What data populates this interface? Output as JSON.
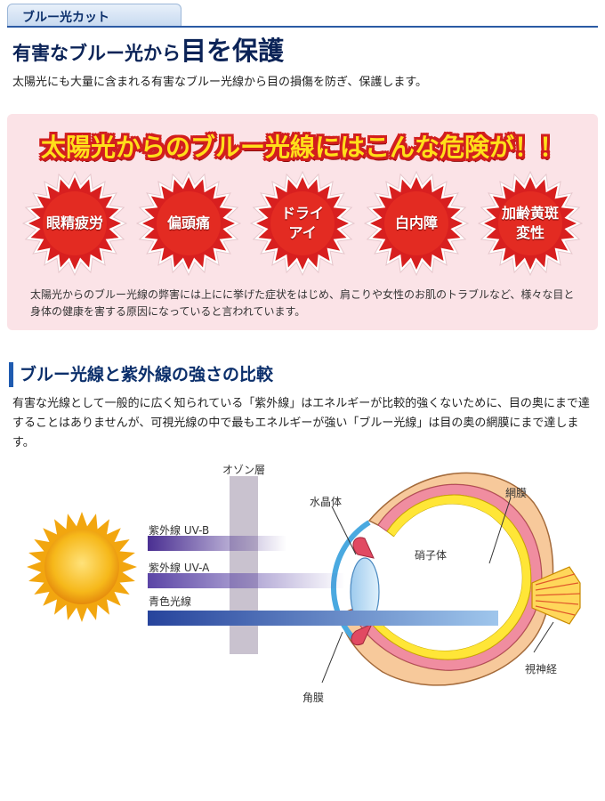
{
  "header": {
    "tab_label": "ブルー光カット",
    "title_prefix": "有害なブルー光から",
    "title_emphasis": "目を保護",
    "intro": "太陽光にも大量に含まれる有害なブルー光線から目の損傷を防ぎ、保護します。"
  },
  "danger": {
    "heading": "太陽光からのブルー光線にはこんな危険が！！",
    "symptoms": [
      "眼精疲労",
      "偏頭痛",
      "ドライ\nアイ",
      "白内障",
      "加齢黄斑\n変性"
    ],
    "note": "太陽光からのブルー光線の弊害には上にに挙げた症状をはじめ、肩こりや女性のお肌のトラブルなど、様々な目と身体の健康を害する原因になっていると言われています。"
  },
  "comparison": {
    "title": "ブルー光線と紫外線の強さの比較",
    "body": "有害な光線として一般的に広く知られている「紫外線」はエネルギーが比較的強くないために、目の奥にまで達することはありませんが、可視光線の中で最もエネルギーが強い「ブルー光線」は目の奥の網膜にまで達します。"
  },
  "diagram": {
    "ozone_label": "オゾン層",
    "uvb_label": "紫外線 UV-B",
    "uva_label": "紫外線 UV-A",
    "blue_label": "青色光線",
    "lens_label": "水晶体",
    "retina_label": "網膜",
    "vitreous_label": "硝子体",
    "optic_nerve_label": "視神経",
    "cornea_label": "角膜",
    "colors": {
      "uvb": "#5a3aa0",
      "uva": "#6a55b0",
      "blue": "#2f4fa3",
      "ozone": "#c9c2cf",
      "sun": "#f6b81a"
    }
  }
}
